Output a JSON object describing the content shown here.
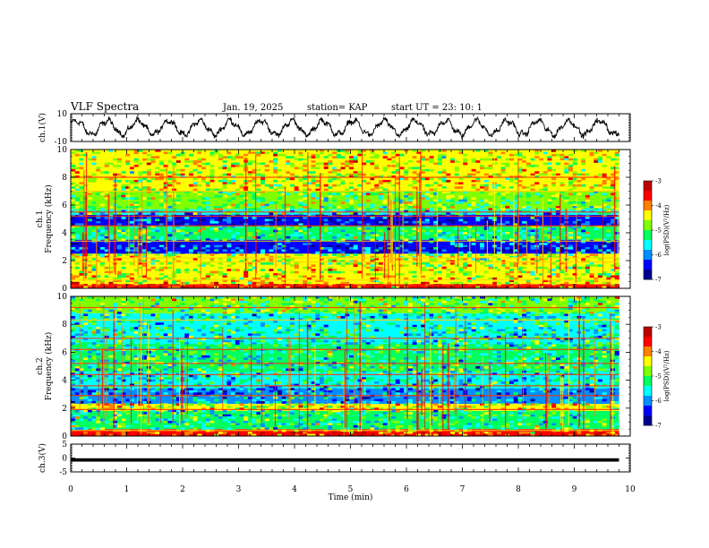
{
  "header": {
    "title": "VLF Spectra",
    "date": "Jan. 19, 2025",
    "station": "station= KAP",
    "start_time": "start  UT  =   23: 10: 1"
  },
  "chart_data": [
    {
      "type": "line",
      "name": "ch1-waveform",
      "ylabel": "ch.1(V)",
      "ylim": [
        -10,
        10
      ],
      "yticks": [
        "10",
        "-10"
      ],
      "xlim": [
        0,
        10
      ],
      "description_values": "oscillating waveform, amplitude about +/-6 V, roughly 18 cycles over 9.8 min"
    },
    {
      "type": "heatmap",
      "name": "ch1-spectrogram",
      "ylabel": "ch.1\nFrequency (kHz)",
      "ylim": [
        0,
        10
      ],
      "yticks": [
        "0",
        "2",
        "4",
        "6",
        "8",
        "10"
      ],
      "xlim": [
        0,
        10
      ],
      "data_end_min": 9.8,
      "colorbar": {
        "label": "log(PSD)(V²/Hz)",
        "range": [
          -7,
          -3
        ],
        "ticks": [
          "-3",
          "-4",
          "-5",
          "-6",
          "-7"
        ]
      },
      "bands": [
        {
          "f": [
            0.0,
            0.3
          ],
          "level": -3.6
        },
        {
          "f": [
            0.3,
            1.0
          ],
          "level": -4.3
        },
        {
          "f": [
            1.0,
            2.5
          ],
          "level": -4.6
        },
        {
          "f": [
            2.5,
            3.5
          ],
          "level": -6.2
        },
        {
          "f": [
            3.5,
            4.5
          ],
          "level": -5.2
        },
        {
          "f": [
            4.5,
            5.3
          ],
          "level": -6.3
        },
        {
          "f": [
            5.3,
            5.7
          ],
          "level": -5.5
        },
        {
          "f": [
            5.7,
            7.0
          ],
          "level": -4.9
        },
        {
          "f": [
            7.0,
            10.0
          ],
          "level": -4.5
        }
      ],
      "tones_khz": [
        0.2,
        0.6,
        1.9,
        2.2,
        3.4,
        4.5,
        5.2,
        5.5,
        7.0,
        8.0
      ]
    },
    {
      "type": "heatmap",
      "name": "ch2-spectrogram",
      "ylabel": "ch.2\nFrequency (kHz)",
      "ylim": [
        0,
        10
      ],
      "yticks": [
        "0",
        "2",
        "4",
        "6",
        "8",
        "10"
      ],
      "xlim": [
        0,
        10
      ],
      "data_end_min": 9.8,
      "colorbar": {
        "label": "log(PSD)(V²/Hz)",
        "range": [
          -7,
          -3
        ],
        "ticks": [
          "-3",
          "-4",
          "-5",
          "-6",
          "-7"
        ]
      },
      "bands": [
        {
          "f": [
            0.0,
            0.5
          ],
          "level": -3.8
        },
        {
          "f": [
            0.5,
            1.8
          ],
          "level": -5.3
        },
        {
          "f": [
            1.8,
            2.3
          ],
          "level": -4.5
        },
        {
          "f": [
            2.3,
            3.4
          ],
          "level": -5.9
        },
        {
          "f": [
            3.4,
            4.6
          ],
          "level": -5.5
        },
        {
          "f": [
            4.6,
            6.6
          ],
          "level": -5.3
        },
        {
          "f": [
            6.6,
            8.8
          ],
          "level": -5.4
        },
        {
          "f": [
            8.8,
            10.0
          ],
          "level": -5.0
        }
      ],
      "tones_khz": [
        0.4,
        1.9,
        2.9,
        3.6,
        4.4,
        5.2,
        6.2,
        7.0,
        8.3,
        9.2
      ]
    },
    {
      "type": "line",
      "name": "ch3-waveform",
      "ylabel": "ch.3(V)",
      "ylim": [
        -5,
        5
      ],
      "yticks": [
        "5",
        "0",
        "-5"
      ],
      "xlim": [
        0,
        10
      ],
      "band_center_v": -0.7,
      "band_halfwidth_v": 0.6
    }
  ],
  "x_axis": {
    "label": "Time  (min)",
    "ticks": [
      "0",
      "1",
      "2",
      "3",
      "4",
      "5",
      "6",
      "7",
      "8",
      "9",
      "10"
    ]
  },
  "colors": {
    "colormap": [
      "#000090",
      "#0000ff",
      "#0090ff",
      "#00ffff",
      "#00ff60",
      "#80ff00",
      "#ffff00",
      "#ff8000",
      "#ff0000",
      "#c00000"
    ]
  }
}
